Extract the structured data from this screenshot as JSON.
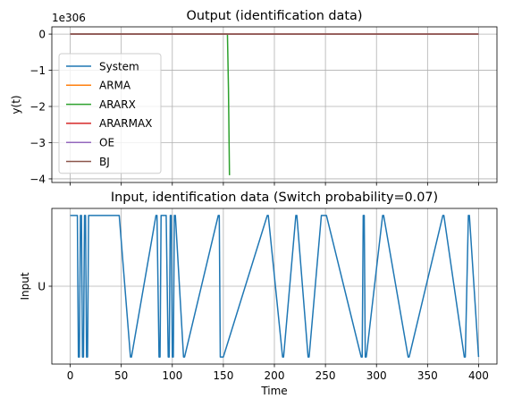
{
  "chart_data": [
    {
      "type": "line",
      "title": "Output (identification data)",
      "xlabel": "",
      "ylabel": "y(t)",
      "offset_text": "1e306",
      "xlim": [
        -18,
        418
      ],
      "ylim": [
        -4.1,
        0.2
      ],
      "x_ticks": [
        0,
        50,
        100,
        150,
        200,
        250,
        300,
        350,
        400
      ],
      "x_ticklabels_visible": false,
      "y_ticks": [
        -4,
        -3,
        -2,
        -1,
        0
      ],
      "y_ticklabels": [
        "−4",
        "−3",
        "−2",
        "−1",
        "0"
      ],
      "grid": true,
      "legend": {
        "placement": "center-left"
      },
      "series": [
        {
          "name": "System",
          "color": "#1f77b4",
          "x": [
            0,
            400
          ],
          "y": [
            0,
            0
          ]
        },
        {
          "name": "ARMA",
          "color": "#ff7f0e",
          "x": [
            0,
            400
          ],
          "y": [
            0,
            0
          ]
        },
        {
          "name": "ARARX",
          "color": "#2ca02c",
          "x": [
            0,
            154,
            155,
            156
          ],
          "y": [
            0,
            0,
            -1.5,
            -3.9
          ]
        },
        {
          "name": "ARARMAX",
          "color": "#d62728",
          "x": [
            0,
            400
          ],
          "y": [
            0,
            0
          ]
        },
        {
          "name": "OE",
          "color": "#9467bd",
          "x": [
            0,
            400
          ],
          "y": [
            0,
            0
          ]
        },
        {
          "name": "BJ",
          "color": "#8c564b",
          "x": [
            0,
            400
          ],
          "y": [
            0,
            0
          ]
        }
      ]
    },
    {
      "type": "line",
      "title": "Input, identification data (Switch probability=0.07)",
      "xlabel": "Time",
      "ylabel": "Input",
      "xlim": [
        -18,
        418
      ],
      "ylim": [
        -1.1,
        1.1
      ],
      "x_ticks": [
        0,
        50,
        100,
        150,
        200,
        250,
        300,
        350,
        400
      ],
      "x_ticklabels": [
        "0",
        "50",
        "100",
        "150",
        "200",
        "250",
        "300",
        "350",
        "400"
      ],
      "y_ticks": [
        0
      ],
      "y_ticklabels": [
        "U"
      ],
      "grid": true,
      "series": [
        {
          "color": "#1f77b4",
          "x": [
            0,
            7,
            8,
            9,
            10,
            11,
            12,
            13,
            14,
            15,
            16,
            17,
            18,
            19,
            20,
            21,
            22,
            23,
            47,
            48,
            59,
            60,
            84,
            85,
            87,
            88,
            89,
            90,
            91,
            92,
            93,
            94,
            96,
            97,
            98,
            99,
            100,
            101,
            102,
            103,
            111,
            112,
            145,
            146,
            147,
            148,
            149,
            150,
            193,
            194,
            208,
            209,
            221,
            222,
            233,
            234,
            246,
            247,
            250,
            251,
            285,
            286,
            287,
            288,
            289,
            290,
            306,
            307,
            331,
            332,
            365,
            366,
            386,
            387,
            390,
            391,
            400
          ],
          "y": [
            1,
            1,
            -1,
            -1,
            1,
            1,
            -1,
            -1,
            1,
            1,
            -1,
            -1,
            1,
            1,
            1,
            1,
            1,
            1,
            1,
            1,
            -1,
            -1,
            1,
            1,
            -1,
            -1,
            1,
            1,
            1,
            1,
            1,
            1,
            -1,
            -1,
            1,
            1,
            -1,
            -1,
            1,
            1,
            -1,
            -1,
            1,
            1,
            -1,
            -1,
            -1,
            -1,
            1,
            1,
            -1,
            -1,
            1,
            1,
            -1,
            -1,
            1,
            1,
            1,
            1,
            -1,
            -1,
            1,
            1,
            -1,
            -1,
            1,
            1,
            -1,
            -1,
            1,
            1,
            -1,
            -1,
            1,
            1,
            -1
          ]
        }
      ]
    }
  ]
}
